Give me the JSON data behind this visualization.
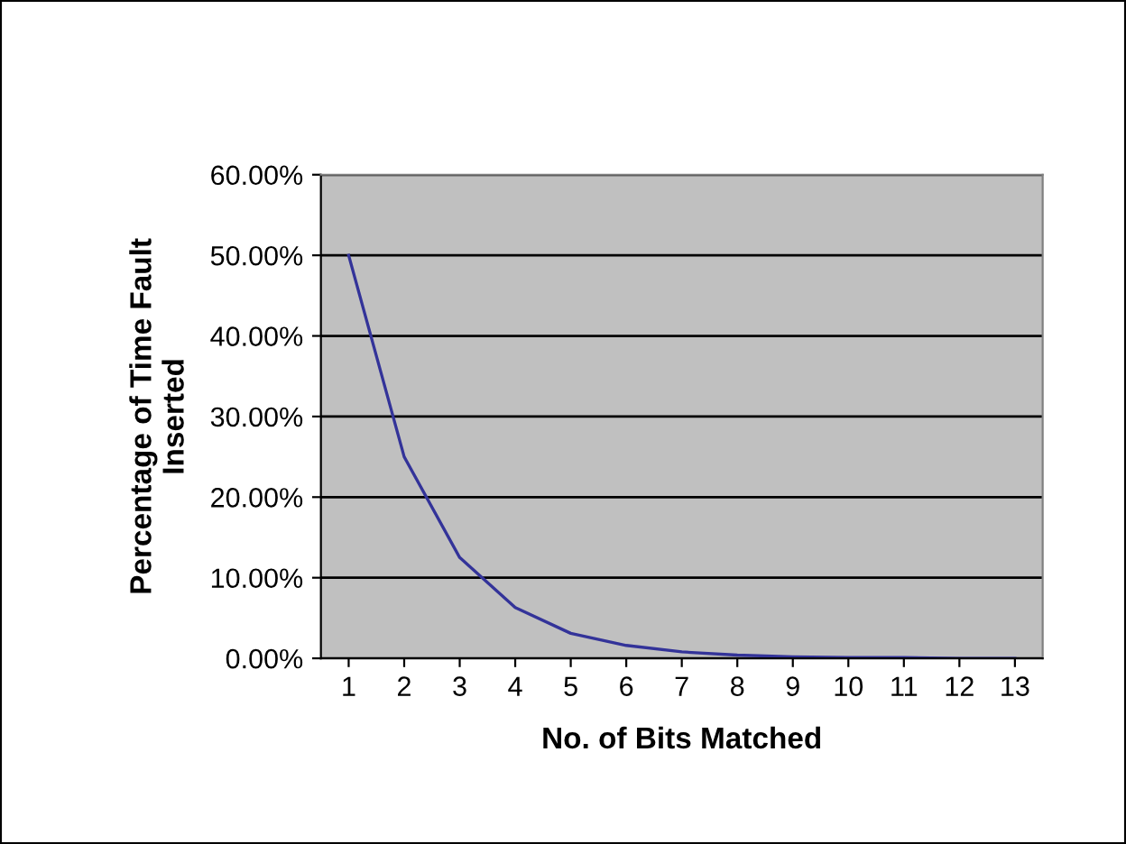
{
  "chart_data": {
    "type": "line",
    "xlabel": "No. of Bits Matched",
    "ylabel": "Percentage of Time Fault\nInserted",
    "categories": [
      "1",
      "2",
      "3",
      "4",
      "5",
      "6",
      "7",
      "8",
      "9",
      "10",
      "11",
      "12",
      "13"
    ],
    "series": [
      {
        "color": "#333399",
        "values": [
          50,
          25,
          12.5,
          6.3,
          3.1,
          1.6,
          0.8,
          0.4,
          0.2,
          0.1,
          0.1,
          0,
          0
        ]
      }
    ],
    "ylim": [
      0,
      60
    ],
    "yticks": [
      {
        "value": 0,
        "label": "0.00%"
      },
      {
        "value": 10,
        "label": "10.00%"
      },
      {
        "value": 20,
        "label": "20.00%"
      },
      {
        "value": 30,
        "label": "30.00%"
      },
      {
        "value": 40,
        "label": "40.00%"
      },
      {
        "value": 50,
        "label": "50.00%"
      },
      {
        "value": 60,
        "label": "60.00%"
      }
    ],
    "grid": "y",
    "marker": "none",
    "line_style": "solid"
  }
}
